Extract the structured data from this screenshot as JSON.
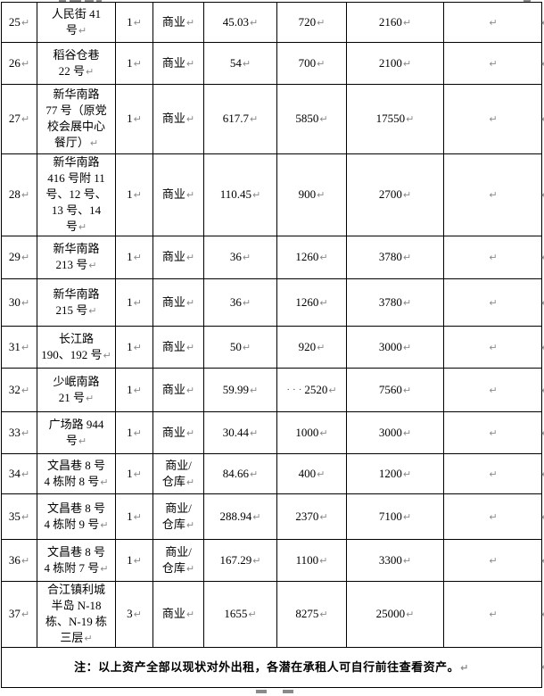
{
  "document": {
    "return_mark": "↵",
    "note": "注：以上资产全部以现状对外出租，各潜在承租人可自行前往查看资产。"
  },
  "table": {
    "rows": [
      {
        "no": "25",
        "address": "人民街 41\n号",
        "qty": "1",
        "use": "商业",
        "area": "45.03",
        "rent1": "720",
        "rent2": "2160",
        "remark": ""
      },
      {
        "no": "26",
        "address": "稻谷仓巷\n22 号",
        "qty": "1",
        "use": "商业",
        "area": "54",
        "rent1": "700",
        "rent2": "2100",
        "remark": ""
      },
      {
        "no": "27",
        "address": "新华南路\n77 号（原党\n校会展中心\n餐厅）",
        "qty": "1",
        "use": "商业",
        "area": "617.7",
        "rent1": "5850",
        "rent2": "17550",
        "remark": ""
      },
      {
        "no": "28",
        "address": "新华南路\n416 号附 11\n号、12 号、\n13 号、14\n号",
        "qty": "1",
        "use": "商业",
        "area": "110.45",
        "rent1": "900",
        "rent2": "2700",
        "remark": ""
      },
      {
        "no": "29",
        "address": "新华南路\n213 号",
        "qty": "1",
        "use": "商业",
        "area": "36",
        "rent1": "1260",
        "rent2": "3780",
        "remark": ""
      },
      {
        "no": "30",
        "address": "新华南路\n215 号",
        "qty": "1",
        "use": "商业",
        "area": "36",
        "rent1": "1260",
        "rent2": "3780",
        "remark": ""
      },
      {
        "no": "31",
        "address": "长江路\n190、192 号",
        "qty": "1",
        "use": "商业",
        "area": "50",
        "rent1": "920",
        "rent2": "3000",
        "remark": "",
        "remark_align": "left"
      },
      {
        "no": "32",
        "address": "少岷南路\n21 号",
        "qty": "1",
        "use": "商业",
        "area": "59.99",
        "rent1": "2520",
        "rent1_prefix": "···",
        "rent2": "7560",
        "remark": ""
      },
      {
        "no": "33",
        "address": "广场路 944\n号",
        "qty": "1",
        "use": "商业",
        "area": "30.44",
        "rent1": "1000",
        "rent2": "3000",
        "remark": ""
      },
      {
        "no": "34",
        "address": "文昌巷 8 号\n4 栋附 8 号",
        "qty": "1",
        "use": "商业/\n仓库",
        "area": "84.66",
        "rent1": "400",
        "rent2": "1200",
        "remark": ""
      },
      {
        "no": "35",
        "address": "文昌巷 8 号\n4 栋附 9 号",
        "qty": "1",
        "use": "商业/\n仓库",
        "area": "288.94",
        "rent1": "2370",
        "rent2": "7100",
        "remark": ""
      },
      {
        "no": "36",
        "address": "文昌巷 8 号\n4 栋附 7 号",
        "qty": "1",
        "use": "商业/\n仓库",
        "area": "167.29",
        "rent1": "1100",
        "rent2": "3300",
        "remark": ""
      },
      {
        "no": "37",
        "address": "合江镇利城\n半岛 N-18\n栋、N-19 栋\n三层",
        "qty": "3",
        "use": "商业",
        "area": "1655",
        "rent1": "8275",
        "rent2": "25000",
        "remark": ""
      }
    ]
  }
}
